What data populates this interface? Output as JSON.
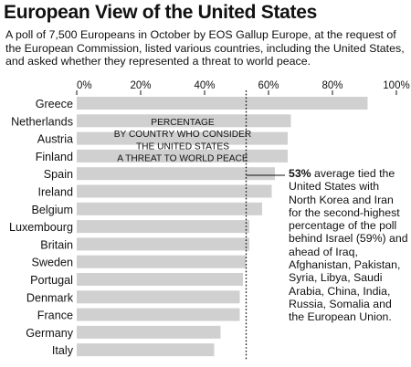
{
  "title": "European View of the United States",
  "subtitle": "A poll of 7,500 Europeans in October by EOS Gallup Europe, at the request of the European Commission, listed various countries, including the United States, and asked whether they represented a threat to world peace.",
  "chart_data": {
    "type": "bar",
    "orientation": "horizontal",
    "categories": [
      "Greece",
      "Netherlands",
      "Austria",
      "Finland",
      "Spain",
      "Ireland",
      "Belgium",
      "Luxembourg",
      "Britain",
      "Sweden",
      "Portugal",
      "Denmark",
      "France",
      "Germany",
      "Italy"
    ],
    "values": [
      91,
      67,
      66,
      66,
      62,
      61,
      58,
      54,
      54,
      53,
      52,
      51,
      51,
      45,
      43
    ],
    "xlim": [
      0,
      100
    ],
    "xticks": [
      "0%",
      "20%",
      "40%",
      "60%",
      "80%",
      "100%"
    ],
    "box_label": [
      "PERCENTAGE",
      "BY COUNTRY WHO CONSIDER",
      "THE UNITED STATES",
      "A THREAT TO WORLD PEACE"
    ],
    "reference_line": {
      "value": 53,
      "style": "dotted"
    },
    "bar_color": "#d0d0d0",
    "grid": false
  },
  "annotation": {
    "highlight": "53%",
    "text": " average tied the United States with North Korea and Iran for the second-highest percentage of the poll behind Israel (59%) and ahead of Iraq, Afghanistan, Pakistan, Syria, Libya, Saudi Arabia, China, India, Russia, Somalia and the European Union."
  }
}
